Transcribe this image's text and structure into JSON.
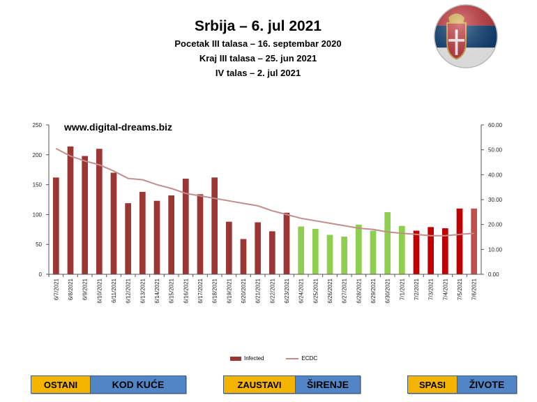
{
  "header": {
    "title": "Srbija – 6. jul 2021",
    "line1": "Pocetak III talasa – 16. septembar 2020",
    "line2": "Kraj III talasa – 25. jun 2021",
    "line3": "IV talas – 2. jul 2021"
  },
  "watermark": "www.digital-dreams.biz",
  "flag": {
    "colors": [
      "#c6363c",
      "#0c4076",
      "#ffffff"
    ],
    "icon": "serbia-flag-icon"
  },
  "chart_data": {
    "type": "bar",
    "categories": [
      "6/7/2021",
      "6/8/2021",
      "6/9/2021",
      "6/10/2021",
      "6/11/2021",
      "6/12/2021",
      "6/13/2021",
      "6/14/2021",
      "6/15/2021",
      "6/16/2021",
      "6/17/2021",
      "6/18/2021",
      "6/19/2021",
      "6/20/2021",
      "6/21/2021",
      "6/22/2021",
      "6/23/2021",
      "6/24/2021",
      "6/25/2021",
      "6/26/2021",
      "6/27/2021",
      "6/28/2021",
      "6/29/2021",
      "6/30/2021",
      "7/1/2021",
      "7/2/2021",
      "7/3/2021",
      "7/4/2021",
      "7/5/2021",
      "7/6/2021"
    ],
    "series": [
      {
        "name": "Infected",
        "axis": "left",
        "values": [
          162,
          214,
          198,
          210,
          170,
          119,
          138,
          123,
          132,
          160,
          134,
          162,
          88,
          59,
          87,
          72,
          103,
          80,
          76,
          66,
          63,
          83,
          73,
          104,
          81,
          73,
          79,
          77,
          110,
          110
        ],
        "colors": [
          "#9b3634",
          "#9b3634",
          "#9b3634",
          "#9b3634",
          "#9b3634",
          "#9b3634",
          "#9b3634",
          "#9b3634",
          "#9b3634",
          "#9b3634",
          "#9b3634",
          "#9b3634",
          "#9b3634",
          "#9b3634",
          "#9b3634",
          "#9b3634",
          "#9b3634",
          "#8fcf4f",
          "#8fcf4f",
          "#8fcf4f",
          "#8fcf4f",
          "#8fcf4f",
          "#8fcf4f",
          "#8fcf4f",
          "#8fcf4f",
          "#c00000",
          "#c00000",
          "#c00000",
          "#c00000",
          "#c0504d"
        ]
      },
      {
        "name": "ECDC",
        "axis": "right",
        "values": [
          50.5,
          47.5,
          45.5,
          44.0,
          41.5,
          38.5,
          38.0,
          36.0,
          34.5,
          32.5,
          31.5,
          30.5,
          29.5,
          28.5,
          27.5,
          25.5,
          24.0,
          22.5,
          21.5,
          20.5,
          19.5,
          18.5,
          18.0,
          17.0,
          16.5,
          16.0,
          15.5,
          15.5,
          16.0,
          16.5
        ],
        "color": "#c08e8c"
      }
    ],
    "ylim": [
      0,
      250
    ],
    "yticks": [
      "0",
      "50",
      "100",
      "150",
      "200",
      "250"
    ],
    "y2lim": [
      0,
      60
    ],
    "y2ticks": [
      "0.00",
      "10.00",
      "20.00",
      "30.00",
      "40.00",
      "50.00",
      "60.00"
    ],
    "grid": false,
    "legend": "bottom"
  },
  "banners": [
    {
      "left": "OSTANI",
      "right": "KOD KUĆE"
    },
    {
      "left": "ZAUSTAVI",
      "right": "ŠIRENJE"
    },
    {
      "left": "SPASI",
      "right": "ŽIVOTE"
    }
  ]
}
